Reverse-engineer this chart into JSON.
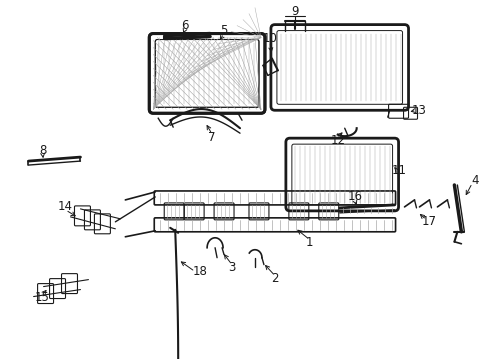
{
  "bg_color": "#ffffff",
  "fig_width": 4.89,
  "fig_height": 3.6,
  "dpi": 100,
  "lc": "#1a1a1a",
  "lc_gray": "#555555",
  "hatch_color": "#888888",
  "label_fontsize": 8.5
}
